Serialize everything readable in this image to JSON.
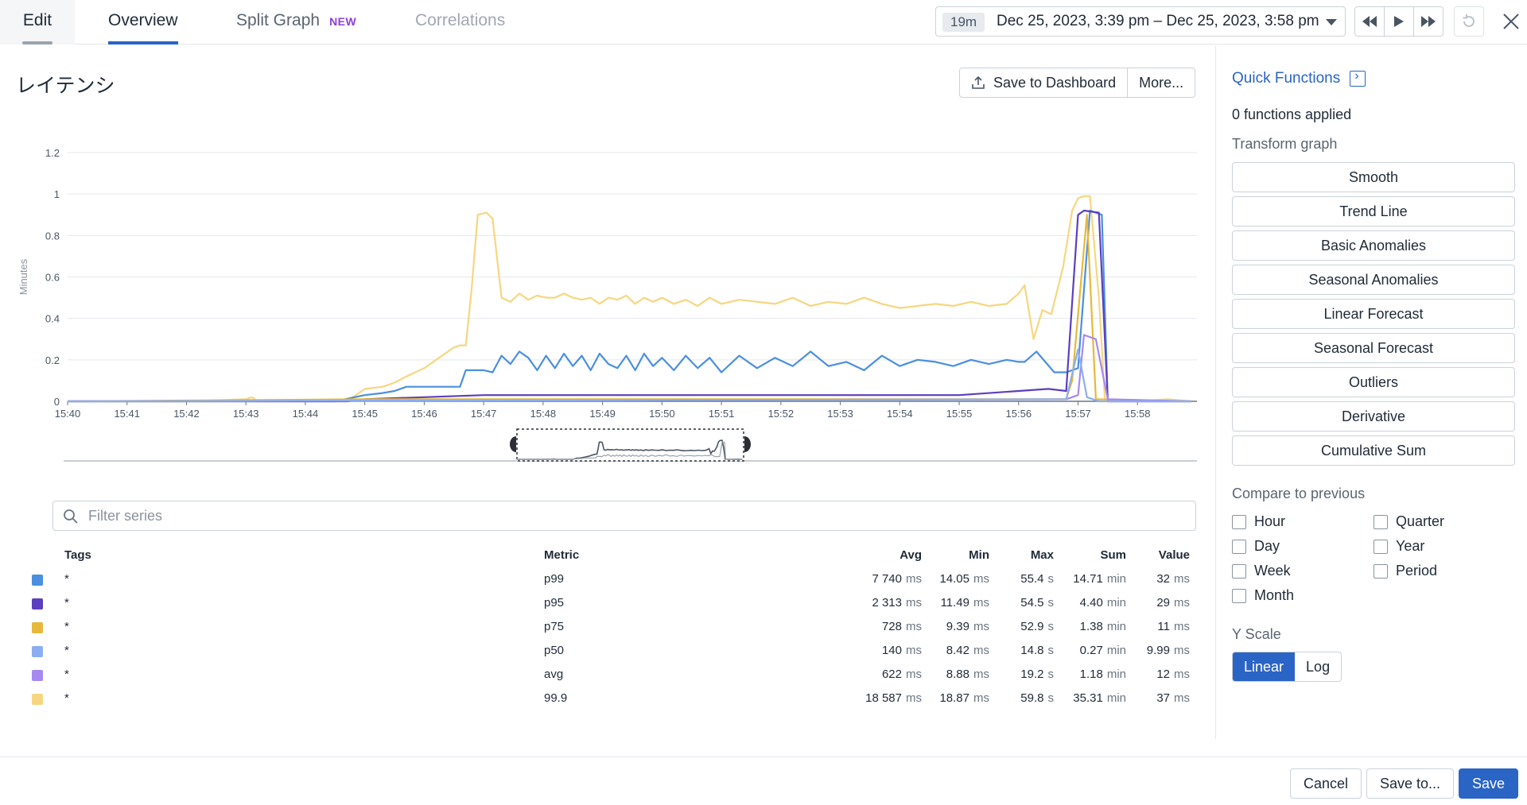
{
  "tabs": {
    "edit": "Edit",
    "overview": "Overview",
    "split_graph": "Split Graph",
    "split_graph_badge": "NEW",
    "correlations": "Correlations"
  },
  "timepicker": {
    "duration": "19m",
    "range": "Dec 25, 2023, 3:39 pm – Dec 25, 2023, 3:58 pm"
  },
  "graph": {
    "title": "レイテンシ",
    "save_to_dashboard": "Save to Dashboard",
    "more": "More..."
  },
  "chart_data": {
    "type": "line",
    "ylabel": "Minutes",
    "ylim": [
      0,
      1.2
    ],
    "yticks": [
      "0",
      "0.2",
      "0.4",
      "0.6",
      "0.8",
      "1",
      "1.2"
    ],
    "xlim": [
      "15:40",
      "15:59"
    ],
    "xticks": [
      "15:40",
      "15:41",
      "15:42",
      "15:43",
      "15:44",
      "15:45",
      "15:46",
      "15:47",
      "15:48",
      "15:49",
      "15:50",
      "15:51",
      "15:52",
      "15:53",
      "15:54",
      "15:55",
      "15:56",
      "15:57",
      "15:58"
    ],
    "grid": true,
    "series": [
      {
        "color": "#f6d680",
        "x": [
          "15:40",
          "15:42",
          "15:43",
          "15:43.1",
          "15:43.2",
          "15:44",
          "15:44.7",
          "15:45",
          "15:45.3",
          "15:45.5",
          "15:45.7",
          "15:46",
          "15:46.3",
          "15:46.5",
          "15:46.6",
          "15:46.7",
          "15:46.8",
          "15:46.9",
          "15:47.05",
          "15:47.15",
          "15:47.3",
          "15:47.45",
          "15:47.6",
          "15:47.75",
          "15:47.9",
          "15:48.05",
          "15:48.2",
          "15:48.35",
          "15:48.5",
          "15:48.65",
          "15:48.8",
          "15:48.95",
          "15:49.1",
          "15:49.25",
          "15:49.4",
          "15:49.55",
          "15:49.7",
          "15:49.85",
          "15:50",
          "15:50.2",
          "15:50.4",
          "15:50.6",
          "15:50.8",
          "15:51",
          "15:51.3",
          "15:51.6",
          "15:51.9",
          "15:52.2",
          "15:52.5",
          "15:52.8",
          "15:53.1",
          "15:53.4",
          "15:53.7",
          "15:54",
          "15:54.3",
          "15:54.6",
          "15:54.9",
          "15:55.2",
          "15:55.5",
          "15:55.8",
          "15:56",
          "15:56.1",
          "15:56.25",
          "15:56.4",
          "15:56.55",
          "15:56.75",
          "15:56.9",
          "15:57",
          "15:57.1",
          "15:57.2",
          "15:57.35",
          "15:57.45",
          "15:57.6",
          "15:58",
          "15:58.5",
          "15:58.9"
        ],
        "y": [
          0,
          0,
          0.01,
          0.02,
          0,
          0,
          0,
          0.06,
          0.07,
          0.09,
          0.12,
          0.16,
          0.22,
          0.26,
          0.27,
          0.27,
          0.55,
          0.9,
          0.91,
          0.88,
          0.5,
          0.48,
          0.52,
          0.49,
          0.51,
          0.5,
          0.5,
          0.52,
          0.5,
          0.49,
          0.5,
          0.47,
          0.5,
          0.49,
          0.51,
          0.47,
          0.5,
          0.48,
          0.5,
          0.47,
          0.49,
          0.46,
          0.5,
          0.47,
          0.49,
          0.48,
          0.47,
          0.5,
          0.46,
          0.48,
          0.47,
          0.5,
          0.47,
          0.45,
          0.46,
          0.47,
          0.46,
          0.48,
          0.46,
          0.47,
          0.52,
          0.56,
          0.3,
          0.44,
          0.42,
          0.65,
          0.92,
          0.98,
          0.99,
          0.99,
          0.5,
          0.01,
          0,
          0,
          0.01,
          0
        ]
      },
      {
        "color": "#4a8fe0",
        "x": [
          "15:40",
          "15:44.5",
          "15:45",
          "15:45.3",
          "15:45.5",
          "15:45.7",
          "15:46",
          "15:46.3",
          "15:46.6",
          "15:46.7",
          "15:47",
          "15:47.15",
          "15:47.3",
          "15:47.45",
          "15:47.6",
          "15:47.75",
          "15:47.9",
          "15:48.05",
          "15:48.2",
          "15:48.35",
          "15:48.5",
          "15:48.65",
          "15:48.8",
          "15:48.95",
          "15:49.1",
          "15:49.25",
          "15:49.4",
          "15:49.55",
          "15:49.7",
          "15:49.85",
          "15:50",
          "15:50.2",
          "15:50.4",
          "15:50.6",
          "15:50.8",
          "15:51",
          "15:51.3",
          "15:51.6",
          "15:51.9",
          "15:52.2",
          "15:52.5",
          "15:52.8",
          "15:53.1",
          "15:53.4",
          "15:53.7",
          "15:54",
          "15:54.3",
          "15:54.6",
          "15:54.9",
          "15:55.2",
          "15:55.5",
          "15:55.8",
          "15:56",
          "15:56.1",
          "15:56.3",
          "15:56.6",
          "15:56.8",
          "15:57",
          "15:57.2",
          "15:57.4",
          "15:57.5",
          "15:58",
          "15:58.9"
        ],
        "y": [
          0,
          0,
          0.03,
          0.04,
          0.05,
          0.07,
          0.07,
          0.07,
          0.07,
          0.15,
          0.15,
          0.14,
          0.22,
          0.18,
          0.24,
          0.21,
          0.15,
          0.22,
          0.16,
          0.23,
          0.17,
          0.22,
          0.15,
          0.23,
          0.18,
          0.16,
          0.22,
          0.15,
          0.23,
          0.17,
          0.21,
          0.15,
          0.22,
          0.16,
          0.21,
          0.14,
          0.22,
          0.16,
          0.21,
          0.17,
          0.24,
          0.17,
          0.19,
          0.15,
          0.22,
          0.17,
          0.2,
          0.19,
          0.17,
          0.2,
          0.18,
          0.2,
          0.19,
          0.19,
          0.24,
          0.14,
          0.14,
          0.16,
          0.92,
          0.9,
          0,
          0,
          0
        ]
      },
      {
        "color": "#5b3fbf",
        "x": [
          "15:40",
          "15:44.7",
          "15:45",
          "15:46",
          "15:47",
          "15:48",
          "15:50",
          "15:52",
          "15:54",
          "15:55",
          "15:56",
          "15:56.5",
          "15:56.8",
          "15:57",
          "15:57.1",
          "15:57.35",
          "15:57.5",
          "15:58.9"
        ],
        "y": [
          0,
          0,
          0.01,
          0.02,
          0.03,
          0.03,
          0.03,
          0.03,
          0.03,
          0.03,
          0.05,
          0.06,
          0.05,
          0.9,
          0.92,
          0.91,
          0,
          0
        ]
      },
      {
        "color": "#e7b93b",
        "x": [
          "15:40",
          "15:45",
          "15:56.8",
          "15:56.9",
          "15:57.15",
          "15:57.3",
          "15:58.9"
        ],
        "y": [
          0,
          0.01,
          0.01,
          0.1,
          0.9,
          0.01,
          0
        ]
      },
      {
        "color": "#a68af0",
        "x": [
          "15:40",
          "15:56.8",
          "15:57",
          "15:57.1",
          "15:57.3",
          "15:57.5",
          "15:58.9"
        ],
        "y": [
          0,
          0.01,
          0.03,
          0.32,
          0.3,
          0.01,
          0
        ]
      },
      {
        "color": "#8aaef0",
        "x": [
          "15:40",
          "15:56.8",
          "15:57",
          "15:57.15",
          "15:57.35",
          "15:58.9"
        ],
        "y": [
          0,
          0.01,
          0.25,
          0.02,
          0,
          0
        ]
      }
    ]
  },
  "filter": {
    "placeholder": "Filter series"
  },
  "legend": {
    "headers": {
      "tags": "Tags",
      "metric": "Metric",
      "avg": "Avg",
      "min": "Min",
      "max": "Max",
      "sum": "Sum",
      "value": "Value"
    },
    "rows": [
      {
        "color": "#4a8fe0",
        "tags": "*",
        "metric": "p99",
        "avg": "7 740",
        "avg_u": "ms",
        "min": "14.05",
        "min_u": "ms",
        "max": "55.4",
        "max_u": "s",
        "sum": "14.71",
        "sum_u": "min",
        "value": "32",
        "value_u": "ms"
      },
      {
        "color": "#5b3fbf",
        "tags": "*",
        "metric": "p95",
        "avg": "2 313",
        "avg_u": "ms",
        "min": "11.49",
        "min_u": "ms",
        "max": "54.5",
        "max_u": "s",
        "sum": "4.40",
        "sum_u": "min",
        "value": "29",
        "value_u": "ms"
      },
      {
        "color": "#e7b93b",
        "tags": "*",
        "metric": "p75",
        "avg": "728",
        "avg_u": "ms",
        "min": "9.39",
        "min_u": "ms",
        "max": "52.9",
        "max_u": "s",
        "sum": "1.38",
        "sum_u": "min",
        "value": "11",
        "value_u": "ms"
      },
      {
        "color": "#8aaef0",
        "tags": "*",
        "metric": "p50",
        "avg": "140",
        "avg_u": "ms",
        "min": "8.42",
        "min_u": "ms",
        "max": "14.8",
        "max_u": "s",
        "sum": "0.27",
        "sum_u": "min",
        "value": "9.99",
        "value_u": "ms"
      },
      {
        "color": "#a68af0",
        "tags": "*",
        "metric": "avg",
        "avg": "622",
        "avg_u": "ms",
        "min": "8.88",
        "min_u": "ms",
        "max": "19.2",
        "max_u": "s",
        "sum": "1.18",
        "sum_u": "min",
        "value": "12",
        "value_u": "ms"
      },
      {
        "color": "#f6d680",
        "tags": "*",
        "metric": "99.9",
        "avg": "18 587",
        "avg_u": "ms",
        "min": "18.87",
        "min_u": "ms",
        "max": "59.8",
        "max_u": "s",
        "sum": "35.31",
        "sum_u": "min",
        "value": "37",
        "value_u": "ms"
      }
    ]
  },
  "panel": {
    "quick_functions": "Quick Functions",
    "applied": "0 functions applied",
    "transform_label": "Transform graph",
    "functions": [
      "Smooth",
      "Trend Line",
      "Basic Anomalies",
      "Seasonal Anomalies",
      "Linear Forecast",
      "Seasonal Forecast",
      "Outliers",
      "Derivative",
      "Cumulative Sum"
    ],
    "compare_label": "Compare to previous",
    "compare_left": [
      "Hour",
      "Day",
      "Week",
      "Month"
    ],
    "compare_right": [
      "Quarter",
      "Year",
      "Period"
    ],
    "yscale_label": "Y Scale",
    "yscale_options": [
      "Linear",
      "Log"
    ],
    "yscale_selected": "Linear"
  },
  "footer": {
    "cancel": "Cancel",
    "save_to": "Save to...",
    "save": "Save"
  }
}
